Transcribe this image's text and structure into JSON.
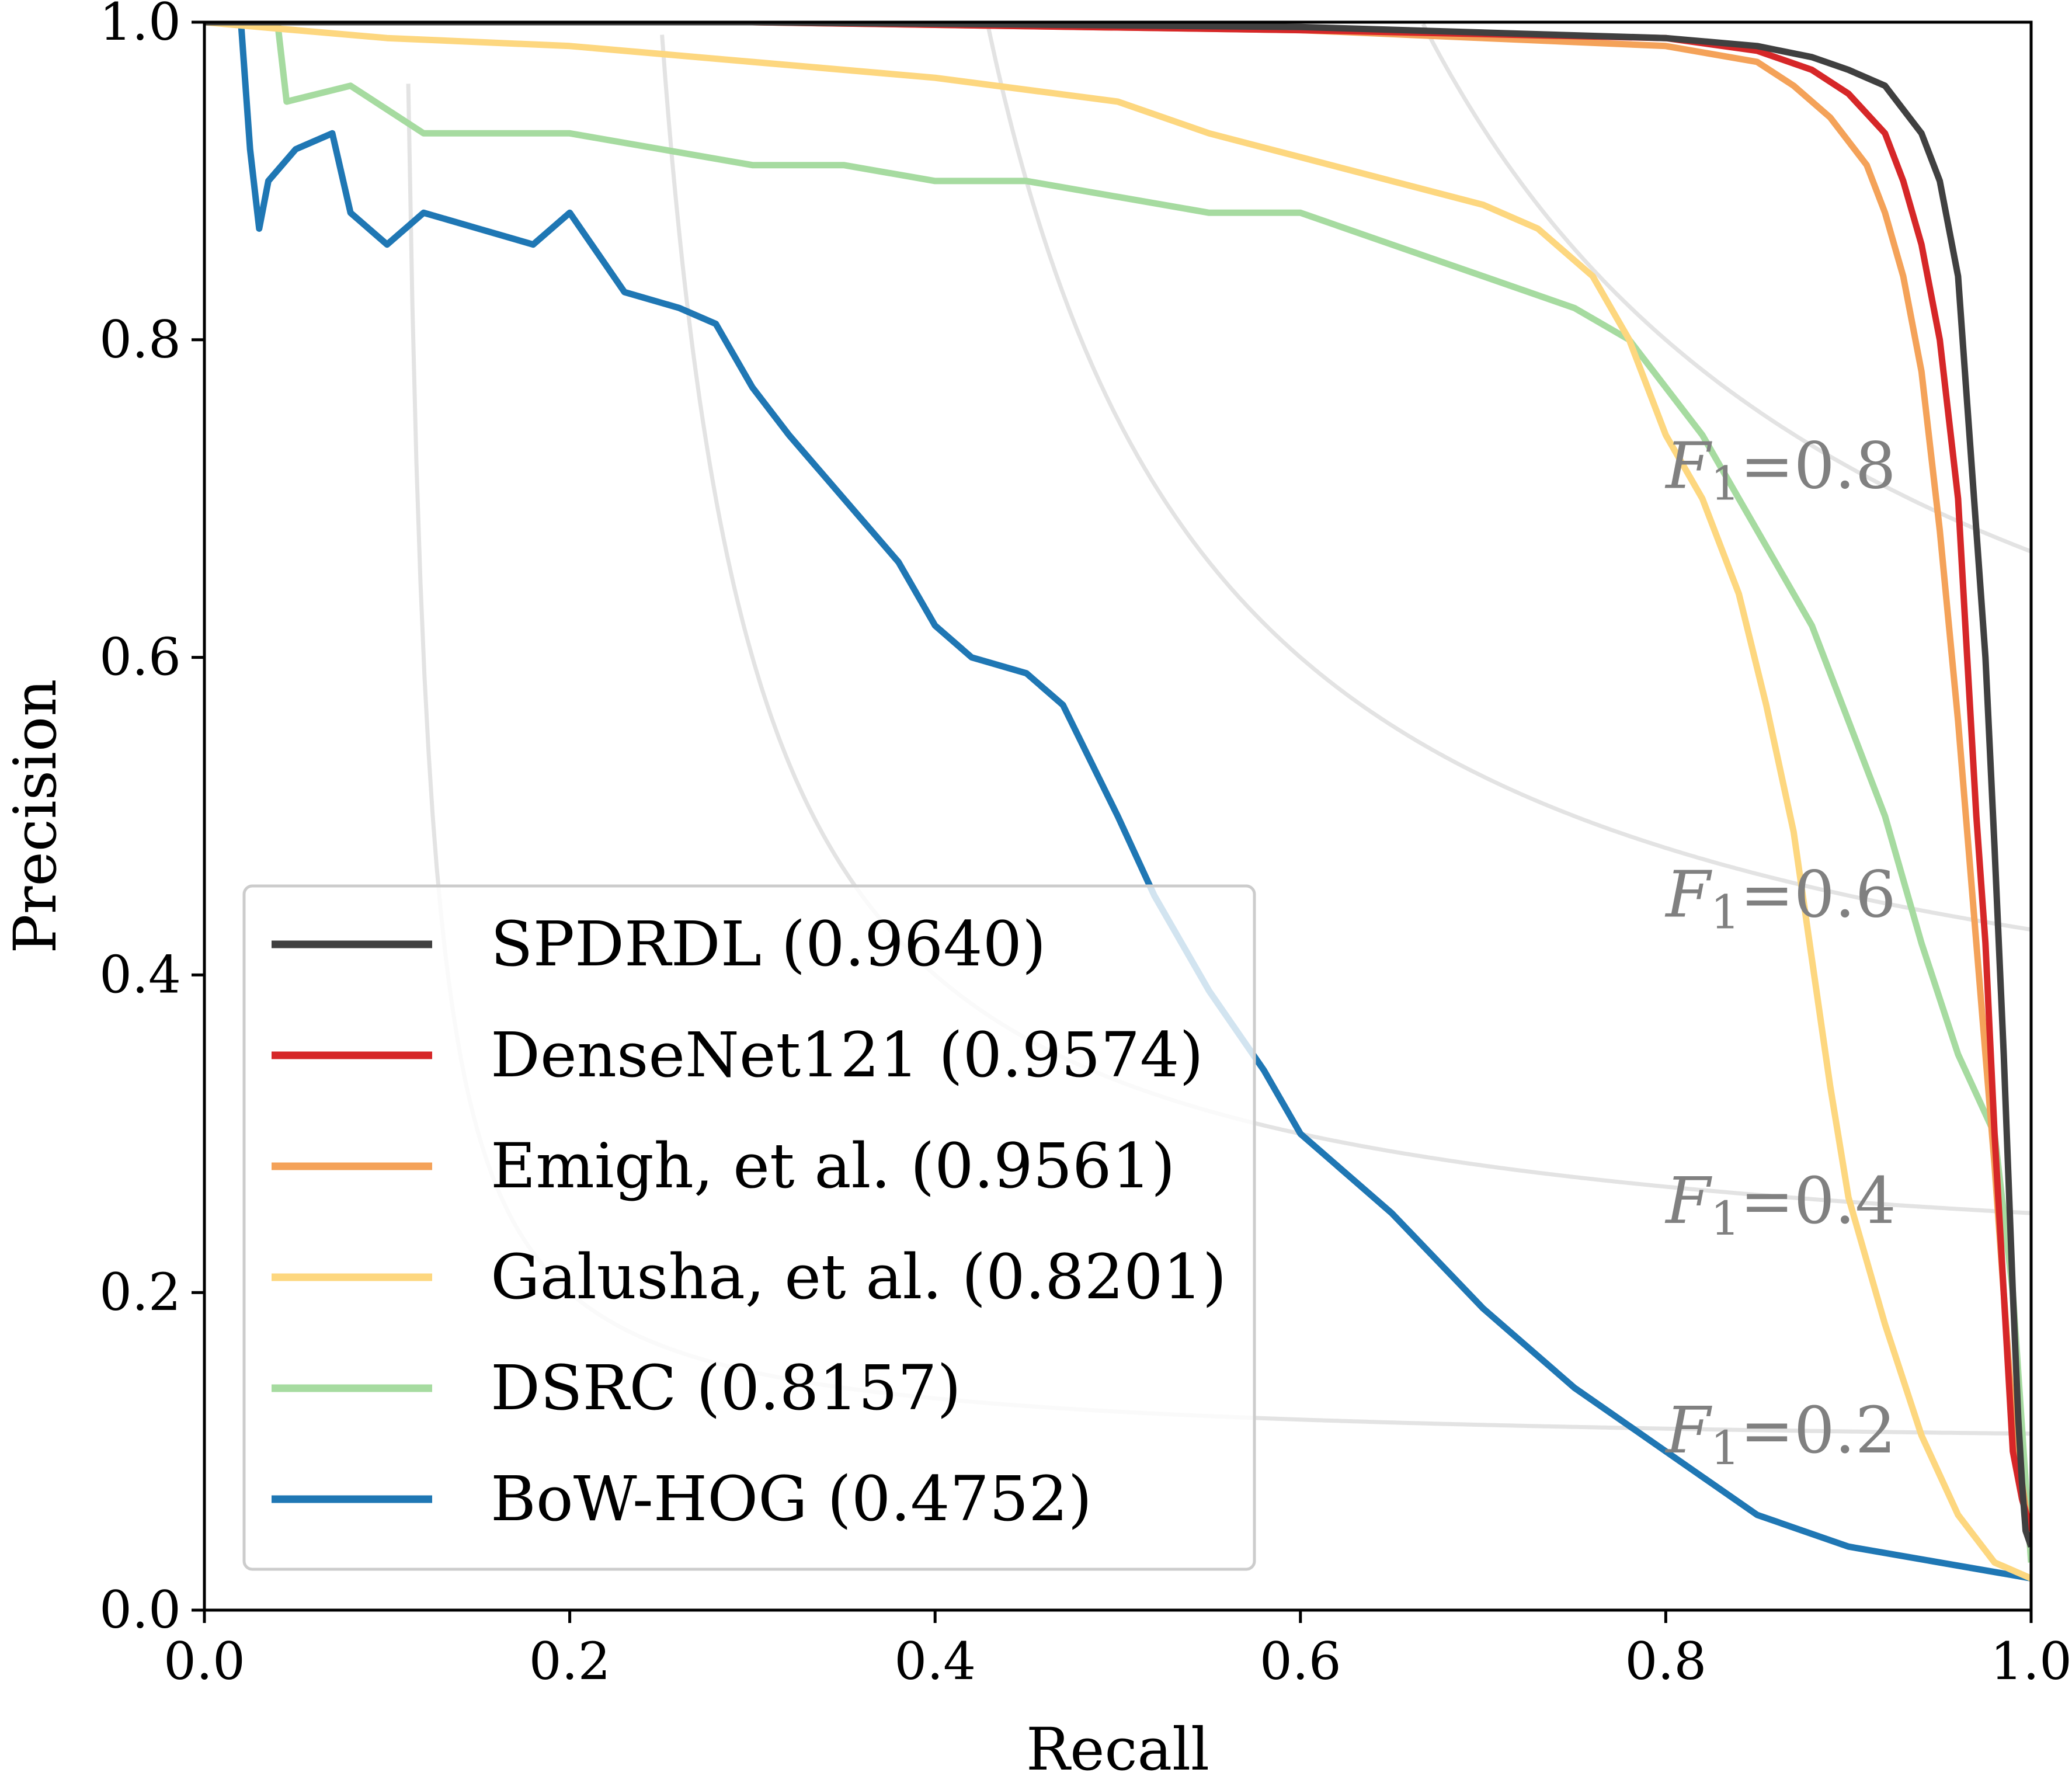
{
  "chart_data": {
    "type": "line",
    "xlabel": "Recall",
    "ylabel": "Precision",
    "xlim": [
      0.0,
      1.0
    ],
    "ylim": [
      0.0,
      1.0
    ],
    "xticks": [
      "0.0",
      "0.2",
      "0.4",
      "0.6",
      "0.8",
      "1.0"
    ],
    "yticks": [
      "0.0",
      "0.2",
      "0.4",
      "0.6",
      "0.8",
      "1.0"
    ],
    "legend_position": "lower-left",
    "iso_f1": [
      {
        "f1": 0.2,
        "label_var": "F",
        "label_sub": "1",
        "label_value": "=0.2"
      },
      {
        "f1": 0.4,
        "label_var": "F",
        "label_sub": "1",
        "label_value": "=0.4"
      },
      {
        "f1": 0.6,
        "label_var": "F",
        "label_sub": "1",
        "label_value": "=0.6"
      },
      {
        "f1": 0.8,
        "label_var": "F",
        "label_sub": "1",
        "label_value": "=0.8"
      }
    ],
    "series": [
      {
        "name": "SPDRDL (0.9640)",
        "color": "#404040",
        "recall": [
          0.0,
          0.3,
          0.6,
          0.8,
          0.85,
          0.88,
          0.9,
          0.92,
          0.94,
          0.95,
          0.96,
          0.965,
          0.97,
          0.975,
          0.98,
          0.985,
          0.99,
          0.993,
          0.995,
          0.997,
          1.0
        ],
        "precision": [
          1.0,
          1.0,
          0.997,
          0.99,
          0.985,
          0.978,
          0.97,
          0.96,
          0.93,
          0.9,
          0.84,
          0.76,
          0.68,
          0.6,
          0.48,
          0.35,
          0.2,
          0.12,
          0.08,
          0.05,
          0.04
        ]
      },
      {
        "name": "DenseNet121 (0.9574)",
        "color": "#d62728",
        "recall": [
          0.0,
          0.3,
          0.6,
          0.8,
          0.85,
          0.88,
          0.9,
          0.92,
          0.93,
          0.94,
          0.95,
          0.96,
          0.965,
          0.97,
          0.975,
          0.98,
          0.985,
          0.99,
          0.995,
          1.0
        ],
        "precision": [
          1.0,
          1.0,
          0.995,
          0.99,
          0.982,
          0.97,
          0.955,
          0.93,
          0.9,
          0.86,
          0.8,
          0.7,
          0.6,
          0.5,
          0.42,
          0.3,
          0.2,
          0.1,
          0.07,
          0.05
        ]
      },
      {
        "name": "Emigh, et al. (0.9561)",
        "color": "#f4a259",
        "recall": [
          0.0,
          0.3,
          0.6,
          0.8,
          0.85,
          0.87,
          0.89,
          0.91,
          0.92,
          0.93,
          0.94,
          0.95,
          0.96,
          0.97,
          0.98,
          0.99,
          1.0
        ],
        "precision": [
          1.0,
          1.0,
          0.995,
          0.985,
          0.975,
          0.96,
          0.94,
          0.91,
          0.88,
          0.84,
          0.78,
          0.68,
          0.56,
          0.42,
          0.28,
          0.12,
          0.04
        ]
      },
      {
        "name": "Galusha, et al. (0.8201)",
        "color": "#fdd77f",
        "recall": [
          0.0,
          0.1,
          0.2,
          0.3,
          0.4,
          0.5,
          0.55,
          0.6,
          0.65,
          0.7,
          0.73,
          0.76,
          0.78,
          0.8,
          0.82,
          0.84,
          0.855,
          0.87,
          0.88,
          0.89,
          0.9,
          0.92,
          0.94,
          0.96,
          0.98,
          1.0
        ],
        "precision": [
          1.0,
          0.99,
          0.985,
          0.975,
          0.965,
          0.95,
          0.93,
          0.915,
          0.9,
          0.885,
          0.87,
          0.84,
          0.8,
          0.74,
          0.7,
          0.64,
          0.57,
          0.49,
          0.41,
          0.33,
          0.26,
          0.18,
          0.11,
          0.06,
          0.03,
          0.02
        ]
      },
      {
        "name": "DSRC (0.8157)",
        "color": "#a6dba0",
        "recall": [
          0.0,
          0.04,
          0.045,
          0.08,
          0.12,
          0.2,
          0.25,
          0.3,
          0.35,
          0.4,
          0.45,
          0.5,
          0.55,
          0.6,
          0.65,
          0.7,
          0.75,
          0.78,
          0.8,
          0.82,
          0.84,
          0.86,
          0.88,
          0.9,
          0.92,
          0.94,
          0.96,
          0.98,
          0.99,
          1.0
        ],
        "precision": [
          1.0,
          1.0,
          0.95,
          0.96,
          0.93,
          0.93,
          0.92,
          0.91,
          0.91,
          0.9,
          0.9,
          0.89,
          0.88,
          0.88,
          0.86,
          0.84,
          0.82,
          0.8,
          0.77,
          0.74,
          0.7,
          0.66,
          0.62,
          0.56,
          0.5,
          0.42,
          0.35,
          0.3,
          0.2,
          0.03
        ]
      },
      {
        "name": "BoW-HOG (0.4752)",
        "color": "#1f77b4",
        "recall": [
          0.0,
          0.02,
          0.025,
          0.03,
          0.035,
          0.05,
          0.07,
          0.08,
          0.1,
          0.12,
          0.15,
          0.18,
          0.2,
          0.23,
          0.26,
          0.28,
          0.3,
          0.32,
          0.35,
          0.38,
          0.4,
          0.42,
          0.45,
          0.47,
          0.5,
          0.52,
          0.55,
          0.58,
          0.6,
          0.65,
          0.7,
          0.75,
          0.8,
          0.85,
          0.9,
          0.95,
          1.0
        ],
        "precision": [
          1.0,
          1.0,
          0.92,
          0.87,
          0.9,
          0.92,
          0.93,
          0.88,
          0.86,
          0.88,
          0.87,
          0.86,
          0.88,
          0.83,
          0.82,
          0.81,
          0.77,
          0.74,
          0.7,
          0.66,
          0.62,
          0.6,
          0.59,
          0.57,
          0.5,
          0.45,
          0.39,
          0.34,
          0.3,
          0.25,
          0.19,
          0.14,
          0.1,
          0.06,
          0.04,
          0.03,
          0.02
        ]
      }
    ]
  }
}
